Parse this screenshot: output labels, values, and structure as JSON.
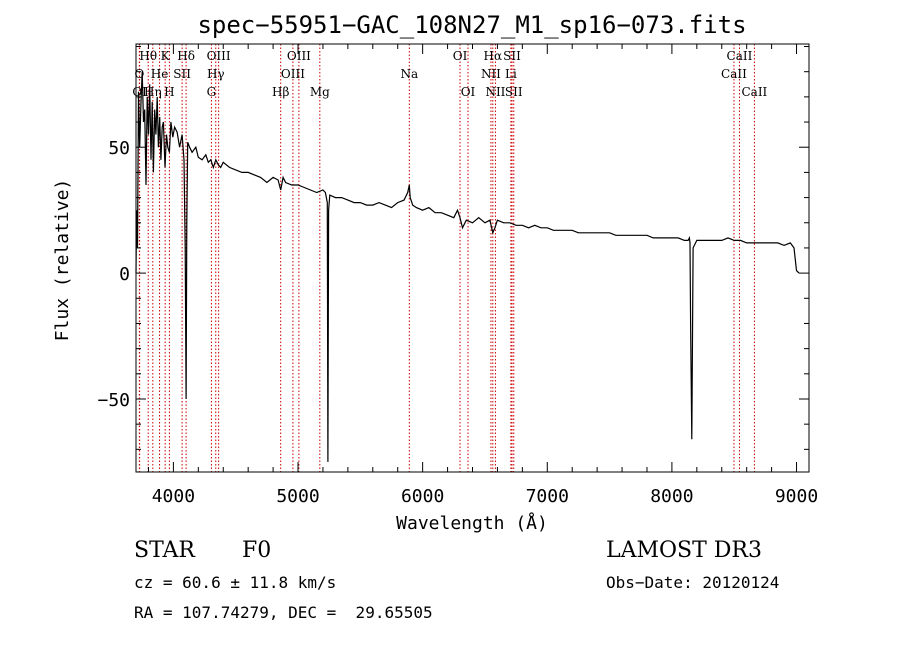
{
  "chart_data": {
    "type": "line",
    "title": "spec−55951−GAC_108N27_M1_sp16−073.fits",
    "xlabel": "Wavelength (Å)",
    "ylabel": "Flux (relative)",
    "xlim": [
      3700,
      9100
    ],
    "ylim": [
      -79,
      91
    ],
    "x_ticks": [
      4000,
      5000,
      6000,
      7000,
      8000,
      9000
    ],
    "x_tick_labels": [
      "4000",
      "5000",
      "6000",
      "7000",
      "8000",
      "9000"
    ],
    "y_ticks": [
      -50,
      0,
      50
    ],
    "y_tick_labels": [
      "−50",
      "0",
      "50"
    ],
    "grid": false,
    "series": [
      {
        "name": "flux",
        "x": [
          3700,
          3705,
          3712,
          3720,
          3730,
          3740,
          3750,
          3760,
          3770,
          3780,
          3790,
          3800,
          3810,
          3820,
          3830,
          3840,
          3850,
          3860,
          3870,
          3880,
          3890,
          3900,
          3910,
          3920,
          3933,
          3945,
          3955,
          3968,
          3980,
          3995,
          4010,
          4030,
          4050,
          4070,
          4085,
          4095,
          4102,
          4108,
          4115,
          4130,
          4150,
          4180,
          4200,
          4230,
          4260,
          4280,
          4300,
          4320,
          4340,
          4360,
          4380,
          4400,
          4450,
          4500,
          4550,
          4600,
          4650,
          4700,
          4750,
          4800,
          4840,
          4861,
          4880,
          4900,
          4950,
          5000,
          5050,
          5100,
          5150,
          5200,
          5220,
          5235,
          5240,
          5245,
          5255,
          5300,
          5350,
          5400,
          5450,
          5500,
          5550,
          5600,
          5650,
          5700,
          5750,
          5800,
          5850,
          5880,
          5893,
          5900,
          5920,
          5950,
          6000,
          6050,
          6100,
          6150,
          6200,
          6250,
          6280,
          6300,
          6320,
          6350,
          6400,
          6450,
          6500,
          6540,
          6563,
          6580,
          6600,
          6650,
          6700,
          6750,
          6800,
          6850,
          6900,
          6950,
          7000,
          7050,
          7100,
          7150,
          7200,
          7250,
          7300,
          7350,
          7400,
          7450,
          7500,
          7550,
          7600,
          7650,
          7700,
          7750,
          7800,
          7850,
          7900,
          7950,
          8000,
          8050,
          8100,
          8130,
          8140,
          8145,
          8150,
          8160,
          8170,
          8200,
          8250,
          8300,
          8350,
          8400,
          8450,
          8500,
          8550,
          8600,
          8650,
          8700,
          8750,
          8800,
          8850,
          8900,
          8950,
          8980,
          9000,
          9020
        ],
        "y": [
          0,
          25,
          10,
          72,
          50,
          68,
          80,
          60,
          65,
          35,
          70,
          55,
          75,
          45,
          68,
          40,
          65,
          55,
          70,
          50,
          62,
          45,
          58,
          60,
          42,
          55,
          50,
          48,
          60,
          54,
          58,
          56,
          50,
          55,
          45,
          10,
          -50,
          20,
          52,
          50,
          48,
          50,
          46,
          45,
          47,
          44,
          45,
          42,
          45,
          43,
          42,
          44,
          42,
          41,
          40,
          40,
          39,
          38,
          36,
          38,
          37,
          33,
          38,
          36,
          35,
          35,
          34,
          33,
          32,
          33,
          32,
          28,
          -75,
          25,
          31,
          30,
          30,
          29,
          28,
          28,
          27,
          27,
          28,
          27,
          26,
          28,
          29,
          32,
          35,
          30,
          27,
          26,
          25,
          26,
          24,
          24,
          23,
          22,
          25,
          22,
          18,
          21,
          20,
          22,
          20,
          21,
          16,
          18,
          21,
          20,
          20,
          19,
          19,
          18,
          19,
          18,
          18,
          17,
          17,
          17,
          17,
          16,
          16,
          16,
          16,
          16,
          16,
          15,
          15,
          15,
          15,
          15,
          15,
          14,
          14,
          14,
          14,
          14,
          13,
          13,
          14,
          12,
          -20,
          -66,
          10,
          13,
          13,
          13,
          13,
          13,
          14,
          13,
          13,
          12,
          12,
          12,
          12,
          12,
          12,
          11,
          12,
          10,
          1,
          0
        ]
      }
    ],
    "spectral_lines": [
      {
        "label": "Hθ",
        "x": 3798,
        "row": 0
      },
      {
        "label": "K",
        "x": 3934,
        "row": 0
      },
      {
        "label": "Hδ",
        "x": 4102,
        "row": 0
      },
      {
        "label": "OIII",
        "x": 4363,
        "row": 0
      },
      {
        "label": "OIII",
        "x": 5007,
        "row": 0
      },
      {
        "label": "OI",
        "x": 6300,
        "row": 0
      },
      {
        "label": "Hα",
        "x": 6563,
        "row": 0
      },
      {
        "label": "SII",
        "x": 6717,
        "row": 0
      },
      {
        "label": "CaII",
        "x": 8542,
        "row": 0
      },
      {
        "label": "O",
        "x": 3727,
        "row": 1
      },
      {
        "label": "He",
        "x": 3889,
        "row": 1
      },
      {
        "label": "SII",
        "x": 4070,
        "row": 1
      },
      {
        "label": "Hγ",
        "x": 4340,
        "row": 1
      },
      {
        "label": "OIII",
        "x": 4959,
        "row": 1
      },
      {
        "label": "Na",
        "x": 5893,
        "row": 1
      },
      {
        "label": "NII",
        "x": 6548,
        "row": 1
      },
      {
        "label": "Li",
        "x": 6708,
        "row": 1
      },
      {
        "label": "CaII",
        "x": 8498,
        "row": 1
      },
      {
        "label": "OI",
        "x": 3729,
        "row": 2
      },
      {
        "label": "Hη",
        "x": 3835,
        "row": 2
      },
      {
        "label": "H",
        "x": 3968,
        "row": 2
      },
      {
        "label": "G",
        "x": 4305,
        "row": 2
      },
      {
        "label": "Hβ",
        "x": 4861,
        "row": 2
      },
      {
        "label": "Mg",
        "x": 5175,
        "row": 2
      },
      {
        "label": "OI",
        "x": 6364,
        "row": 2
      },
      {
        "label": "NII",
        "x": 6584,
        "row": 2
      },
      {
        "label": "SII",
        "x": 6731,
        "row": 2
      },
      {
        "label": "CaII",
        "x": 8662,
        "row": 2
      }
    ],
    "line_marker_color": "#cc0000",
    "spectrum_color": "#000000"
  },
  "info": {
    "object_class": "STAR",
    "subclass": "F0",
    "survey": "LAMOST DR3",
    "redshift": "cz = 60.6 ± 11.8 km/s",
    "obs_date": "Obs−Date: 20120124",
    "coords": "RA = 107.74279, DEC =  29.65505"
  }
}
